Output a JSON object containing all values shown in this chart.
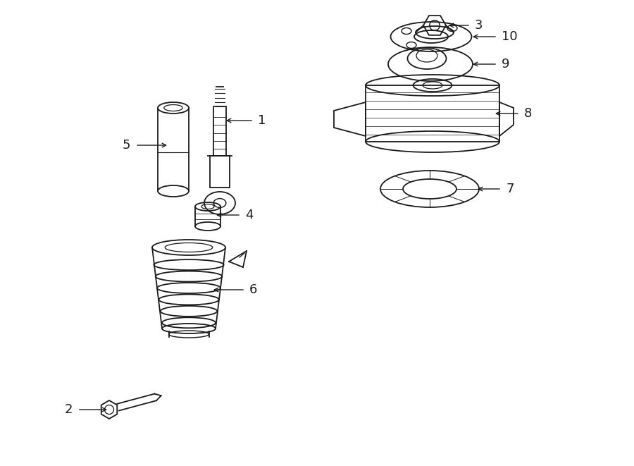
{
  "background_color": "#ffffff",
  "line_color": "#1a1a1a",
  "lw": 1.3,
  "fig_w": 9.0,
  "fig_h": 6.61,
  "dpi": 100
}
